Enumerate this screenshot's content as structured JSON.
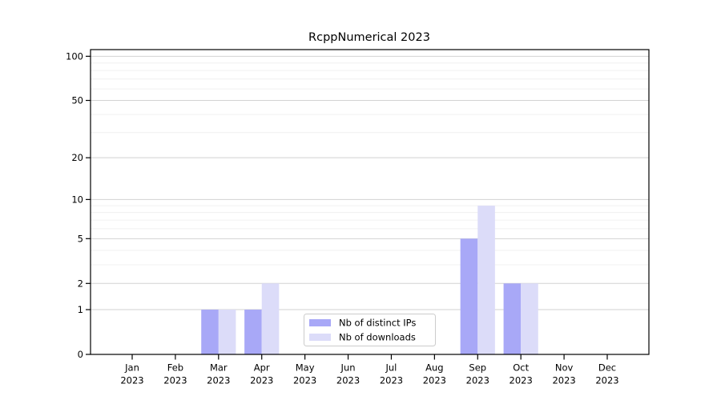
{
  "title": "RcppNumerical 2023",
  "chart_data": {
    "type": "bar",
    "title": "RcppNumerical 2023",
    "categories": [
      "Jan",
      "Feb",
      "Mar",
      "Apr",
      "May",
      "Jun",
      "Jul",
      "Aug",
      "Sep",
      "Oct",
      "Nov",
      "Dec"
    ],
    "category_sub_label": "2023",
    "series": [
      {
        "name": "Nb of distinct IPs",
        "color": "#a8a8f7",
        "values": [
          0,
          0,
          1,
          1,
          0,
          0,
          0,
          0,
          5,
          2,
          0,
          0
        ]
      },
      {
        "name": "Nb of downloads",
        "color": "#dcdcf9",
        "values": [
          0,
          0,
          1,
          2,
          0,
          0,
          0,
          0,
          9,
          2,
          0,
          0
        ]
      }
    ],
    "xlabel": "",
    "ylabel": "",
    "y_scale": "log1p",
    "y_ticks": [
      0,
      1,
      2,
      5,
      10,
      20,
      50,
      100
    ],
    "y_minor_ticks": [
      3,
      4,
      6,
      7,
      8,
      9,
      30,
      40,
      60,
      70,
      80,
      90
    ],
    "ylim": [
      0,
      111
    ],
    "grid": "on",
    "legend_position": "lower center",
    "colors": {
      "background": "#ffffff",
      "major_grid": "#d2d2d2",
      "minor_grid": "#f0f0f0",
      "axis": "#000000",
      "legend_border": "#cccccc",
      "legend_background": "#ffffff"
    }
  }
}
